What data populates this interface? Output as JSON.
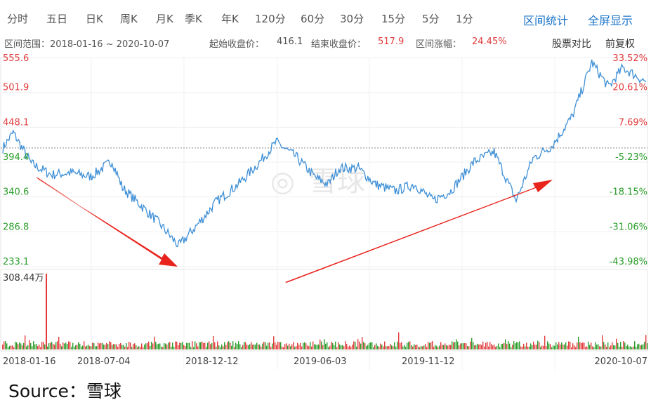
{
  "tabs": {
    "periods": [
      "分时",
      "五日",
      "日K",
      "周K",
      "月K",
      "季K",
      "年K",
      "120分",
      "60分",
      "30分",
      "15分",
      "5分",
      "1分"
    ],
    "interval_stats": "区间统计",
    "fullscreen": "全屏显示"
  },
  "info": {
    "range_label": "区间范围：2018-01-16 ~ 2020-10-07",
    "start_label": "起始收盘价：",
    "start_value": "416.1",
    "end_label": "结束收盘价：",
    "end_value": "517.9",
    "change_label": "区间涨幅：",
    "change_value": "24.45%",
    "compare": "股票对比",
    "adjust": "前复权"
  },
  "watermark": "雪球",
  "source": "Source：雪球",
  "colors": {
    "line": "#3d8fd6",
    "up": "#e23c3c",
    "down": "#2a9d2a",
    "arrow": "#e8241c"
  },
  "chart_data": {
    "type": "line",
    "x_ticks": [
      "2018-01-16",
      "2018-07-04",
      "2018-12-12",
      "2019-06-03",
      "2019-11-12",
      "2020-10-07"
    ],
    "y_ticks_price": [
      "555.6",
      "501.9",
      "448.1",
      "394.4",
      "340.6",
      "286.8",
      "233.1"
    ],
    "y_ticks_pct": [
      "33.52%",
      "20.61%",
      "7.69%",
      "-5.23%",
      "-18.15%",
      "-31.06%",
      "-43.98%"
    ],
    "ylim": [
      233.1,
      555.6
    ],
    "reference_price": 416.1,
    "volume_max_label": "308.44万",
    "series": [
      {
        "x": [
          "2018-01-16",
          "2018-02-01",
          "2018-03-01",
          "2018-04-01",
          "2018-05-01",
          "2018-06-01",
          "2018-07-04",
          "2018-07-20",
          "2018-08-15",
          "2018-09-15",
          "2018-10-15",
          "2018-11-15",
          "2018-12-12",
          "2019-01-15",
          "2019-02-15",
          "2019-03-15",
          "2019-04-15",
          "2019-05-15",
          "2019-06-03",
          "2019-06-20",
          "2019-07-20",
          "2019-08-15",
          "2019-09-15",
          "2019-10-15",
          "2019-11-12",
          "2019-12-10",
          "2020-01-15",
          "2020-02-15",
          "2020-03-20",
          "2020-04-15",
          "2020-05-15",
          "2020-06-15",
          "2020-07-15",
          "2020-08-10",
          "2020-09-01",
          "2020-10-07"
        ],
        "values": [
          416.1,
          440,
          392,
          375,
          378,
          372,
          396,
          355,
          330,
          300,
          265,
          300,
          333,
          360,
          392,
          425,
          402,
          370,
          360,
          385,
          385,
          360,
          350,
          360,
          335,
          350,
          395,
          410,
          335,
          400,
          420,
          465,
          548,
          510,
          540,
          517.9
        ]
      }
    ],
    "annotations": [
      "downward arrow (2018-03 to 2018-12)",
      "upward arrow (2019-06 to 2020-06)"
    ]
  }
}
